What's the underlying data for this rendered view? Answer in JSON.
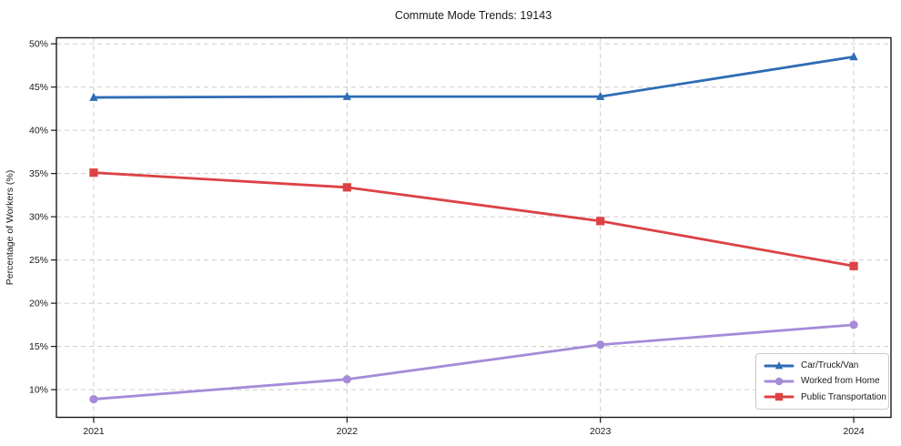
{
  "chart_data": {
    "type": "line",
    "title": "Commute Mode Trends: 19143",
    "xlabel": "",
    "ylabel": "Percentage of Workers (%)",
    "x": [
      2021,
      2022,
      2023,
      2024
    ],
    "x_tick_labels": [
      "2021",
      "2022",
      "2023",
      "2024"
    ],
    "y_ticks": [
      10,
      15,
      20,
      25,
      30,
      35,
      40,
      45,
      50
    ],
    "y_tick_labels": [
      "10%",
      "15%",
      "20%",
      "25%",
      "30%",
      "35%",
      "40%",
      "45%",
      "50%"
    ],
    "ylim": [
      6.8,
      50.7
    ],
    "grid": true,
    "grid_style": "dashed",
    "legend_position": "lower right",
    "series": [
      {
        "name": "Car/Truck/Van",
        "color": "#2e6cb5",
        "marker": "triangle",
        "values": [
          43.8,
          43.9,
          43.9,
          48.5
        ]
      },
      {
        "name": "Worked from Home",
        "color": "#a58bd8",
        "marker": "circle",
        "values": [
          8.9,
          11.2,
          15.2,
          17.5
        ]
      },
      {
        "name": "Public Transportation",
        "color": "#dc4245",
        "marker": "square",
        "values": [
          35.1,
          33.4,
          29.5,
          24.3
        ]
      }
    ]
  }
}
